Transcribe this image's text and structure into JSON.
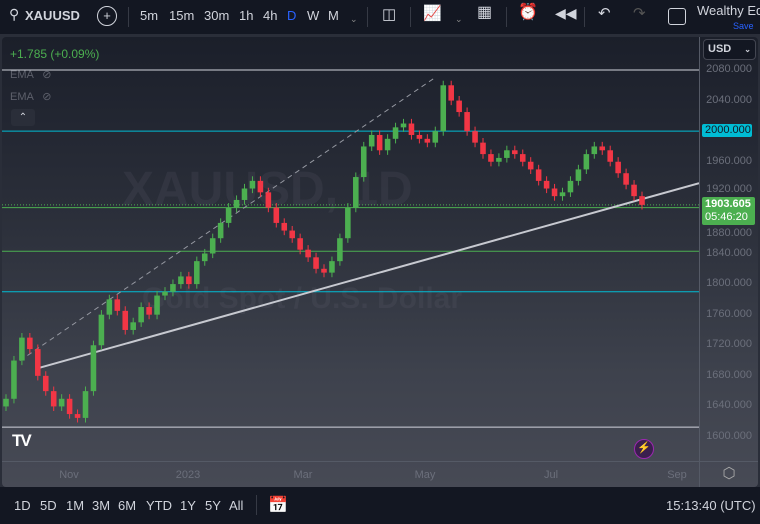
{
  "toolbar": {
    "symbol": "XAUUSD",
    "intervals": [
      "5m",
      "15m",
      "30m",
      "1h",
      "4h",
      "D",
      "W",
      "M"
    ],
    "active_interval": "D",
    "layout_name": "Wealthy Ed",
    "save_label": "Save"
  },
  "legend": {
    "change": "+1.785 (+0.09%)",
    "indicators": [
      "EMA",
      "EMA"
    ]
  },
  "currency": "USD",
  "watermark": {
    "symbol": "XAUUSD, 1D",
    "description": "Gold Spot / U.S. Dollar"
  },
  "colors": {
    "up": "#26a69a",
    "up_candle": "#4caf50",
    "down": "#f23645",
    "accent": "#2962ff",
    "cyan_level": "#00bcd4",
    "green_level": "#4caf50",
    "price_label": "#4caf50"
  },
  "chart_data": {
    "type": "candlestick",
    "symbol": "XAUUSD",
    "interval": "D",
    "ylim": [
      1570,
      2090
    ],
    "price_ticks": [
      "2080.000",
      "2040.000",
      "2000.000",
      "1960.000",
      "1920.000",
      "1880.000",
      "1840.000",
      "1800.000",
      "1760.000",
      "1720.000",
      "1680.000",
      "1640.000",
      "1600.000"
    ],
    "time_ticks": [
      "Nov",
      "2023",
      "Mar",
      "May",
      "Jul",
      "Sep"
    ],
    "closes": [
      1650,
      1700,
      1730,
      1715,
      1680,
      1660,
      1640,
      1650,
      1630,
      1625,
      1660,
      1720,
      1760,
      1780,
      1765,
      1740,
      1750,
      1770,
      1760,
      1785,
      1790,
      1800,
      1810,
      1800,
      1830,
      1840,
      1860,
      1880,
      1900,
      1910,
      1925,
      1935,
      1920,
      1900,
      1880,
      1870,
      1860,
      1845,
      1835,
      1820,
      1815,
      1830,
      1860,
      1900,
      1940,
      1980,
      1995,
      1975,
      1990,
      2005,
      2010,
      1995,
      1990,
      1985,
      2000,
      2060,
      2040,
      2025,
      2000,
      1985,
      1970,
      1960,
      1965,
      1975,
      1970,
      1960,
      1950,
      1935,
      1925,
      1915,
      1920,
      1935,
      1950,
      1970,
      1980,
      1975,
      1960,
      1945,
      1930,
      1915,
      1903.605
    ],
    "horizontal_levels": [
      {
        "price": 2080,
        "color": "#d1d4dc"
      },
      {
        "price": 2000,
        "color": "#00bcd4",
        "label": "2000.000"
      },
      {
        "price": 1900,
        "color": "#4caf50"
      },
      {
        "price": 1843,
        "color": "#4caf50"
      },
      {
        "price": 1790,
        "color": "#00bcd4"
      },
      {
        "price": 1613,
        "color": "#d1d4dc"
      }
    ],
    "trendline": {
      "from_price": 1690,
      "to_price": 1932
    },
    "dashed_line": {
      "from_price": 1700,
      "to_price": 2070
    },
    "last_price": "1903.605",
    "countdown": "05:46:20"
  },
  "range_buttons": [
    "1D",
    "5D",
    "1M",
    "3M",
    "6M",
    "YTD",
    "1Y",
    "5Y",
    "All"
  ],
  "clock": "15:13:40 (UTC)"
}
